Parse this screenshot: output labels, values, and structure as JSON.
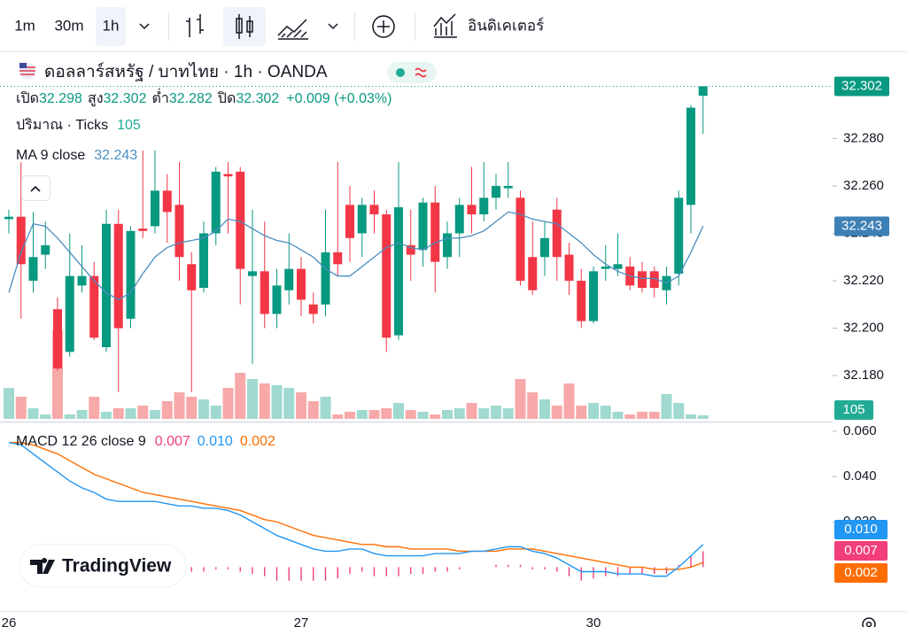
{
  "toolbar": {
    "intervals": [
      "1m",
      "30m",
      "1h"
    ],
    "indicators": "อินดิเคเตอร์"
  },
  "watermark": "TradingView",
  "chart_data": {
    "type": "candlestick",
    "title": "ดอลลาร์สหรัฐ / บาทไทย · 1h · OANDA",
    "ohlc_labels": [
      "เปิด",
      "สูง",
      "ต่ำ",
      "ปิด"
    ],
    "change": "+0.009 (+0.03%)",
    "categories": [
      "26",
      null,
      null,
      null,
      null,
      null,
      null,
      null,
      null,
      null,
      null,
      null,
      null,
      null,
      null,
      null,
      null,
      null,
      null,
      null,
      null,
      null,
      null,
      null,
      "27",
      null,
      null,
      null,
      null,
      null,
      null,
      null,
      null,
      null,
      null,
      null,
      null,
      null,
      null,
      null,
      null,
      null,
      null,
      null,
      null,
      null,
      null,
      null,
      "30",
      null,
      null,
      null,
      null,
      null,
      null,
      null,
      null,
      null
    ],
    "open": [
      32.246,
      32.247,
      32.22,
      32.231,
      32.208,
      32.19,
      32.218,
      32.222,
      32.192,
      32.244,
      32.204,
      32.242,
      32.243,
      32.258,
      32.252,
      32.227,
      32.217,
      32.24,
      32.265,
      32.266,
      32.222,
      32.224,
      32.206,
      32.216,
      32.225,
      32.21,
      32.21,
      32.232,
      32.252,
      32.24,
      32.252,
      32.248,
      32.197,
      32.235,
      32.233,
      32.253,
      32.23,
      32.24,
      32.252,
      32.248,
      32.255,
      32.259,
      32.255,
      32.23,
      32.23,
      32.25,
      32.231,
      32.22,
      32.203,
      32.225,
      32.225,
      32.226,
      32.224,
      32.224,
      32.216,
      32.223,
      32.252,
      32.298
    ],
    "high": [
      32.25,
      32.27,
      32.249,
      32.245,
      32.213,
      32.24,
      32.235,
      32.228,
      32.25,
      32.25,
      32.243,
      32.275,
      32.275,
      32.265,
      32.27,
      32.232,
      32.245,
      32.268,
      32.27,
      32.268,
      32.25,
      32.245,
      32.225,
      32.24,
      32.23,
      32.215,
      32.25,
      32.27,
      32.26,
      32.255,
      32.258,
      32.25,
      32.27,
      32.25,
      32.255,
      32.26,
      32.245,
      32.255,
      32.268,
      32.27,
      32.265,
      32.27,
      32.258,
      32.245,
      32.245,
      32.255,
      32.236,
      32.225,
      32.226,
      32.235,
      32.24,
      32.23,
      32.228,
      32.226,
      32.226,
      32.258,
      32.294,
      32.302
    ],
    "low": [
      32.24,
      32.204,
      32.215,
      32.225,
      32.182,
      32.188,
      32.215,
      32.195,
      32.19,
      32.173,
      32.2,
      32.238,
      32.24,
      32.236,
      32.22,
      32.173,
      32.215,
      32.235,
      32.24,
      32.21,
      32.185,
      32.2,
      32.2,
      32.21,
      32.205,
      32.202,
      32.205,
      32.222,
      32.228,
      32.23,
      32.24,
      32.19,
      32.195,
      32.22,
      32.226,
      32.215,
      32.225,
      32.23,
      32.24,
      32.245,
      32.25,
      32.255,
      32.218,
      32.214,
      32.222,
      32.22,
      32.214,
      32.2,
      32.202,
      32.22,
      32.222,
      32.216,
      32.215,
      32.213,
      32.21,
      32.218,
      32.24,
      32.282
    ],
    "close": [
      32.247,
      32.227,
      32.23,
      32.235,
      32.183,
      32.222,
      32.222,
      32.196,
      32.244,
      32.2,
      32.241,
      32.241,
      32.258,
      32.249,
      32.23,
      32.216,
      32.24,
      32.266,
      32.264,
      32.225,
      32.224,
      32.206,
      32.218,
      32.225,
      32.212,
      32.206,
      32.232,
      32.227,
      32.238,
      32.252,
      32.248,
      32.196,
      32.251,
      32.231,
      32.253,
      32.228,
      32.24,
      32.252,
      32.248,
      32.255,
      32.26,
      32.26,
      32.22,
      32.216,
      32.238,
      32.23,
      32.22,
      32.203,
      32.224,
      32.226,
      32.227,
      32.218,
      32.217,
      32.217,
      32.222,
      32.255,
      32.293,
      32.302
    ],
    "up_color": "#089981",
    "down_color": "#f23645",
    "ylim": [
      32.161,
      32.316
    ],
    "yticks": [
      {
        "value": 32.18,
        "label": "32.180"
      },
      {
        "value": 32.2,
        "label": "32.200"
      },
      {
        "value": 32.22,
        "label": "32.220"
      },
      {
        "value": 32.24,
        "label": "32.240"
      },
      {
        "value": 32.26,
        "label": "32.260"
      },
      {
        "value": 32.28,
        "label": "32.280"
      }
    ],
    "volume": {
      "label": "ปริมาณ · Ticks",
      "up_color": "#a0d9cf",
      "down_color": "#f7a9a9",
      "values": [
        910,
        650,
        312,
        130,
        2600,
        130,
        260,
        650,
        208,
        312,
        312,
        390,
        260,
        520,
        780,
        650,
        572,
        390,
        910,
        1352,
        1170,
        1040,
        988,
        910,
        780,
        520,
        650,
        130,
        208,
        260,
        260,
        312,
        468,
        260,
        208,
        130,
        260,
        312,
        468,
        312,
        390,
        312,
        1170,
        780,
        572,
        390,
        1040,
        390,
        468,
        390,
        208,
        130,
        208,
        208,
        728,
        468,
        130,
        105
      ]
    },
    "ma": {
      "label": "MA 9 close",
      "color": "#4a8dc0",
      "values": [
        32.215,
        32.232,
        32.244,
        32.243,
        32.238,
        32.232,
        32.226,
        32.22,
        32.215,
        32.212,
        32.215,
        32.223,
        32.23,
        32.234,
        32.236,
        32.237,
        32.238,
        32.241,
        32.246,
        32.245,
        32.242,
        32.239,
        32.237,
        32.236,
        32.233,
        32.23,
        32.225,
        32.222,
        32.222,
        32.226,
        32.23,
        32.234,
        32.236,
        32.234,
        32.233,
        32.236,
        32.238,
        32.238,
        32.239,
        32.241,
        32.245,
        32.249,
        32.248,
        32.246,
        32.245,
        32.244,
        32.24,
        32.236,
        32.231,
        32.227,
        32.224,
        32.222,
        32.221,
        32.221,
        32.219,
        32.222,
        32.232,
        32.243
      ]
    },
    "macd": {
      "label": "MACD 12 26 close 9",
      "ylim": [
        -0.0194,
        0.0635
      ],
      "yticks": [
        {
          "value": 0.02,
          "label": "0.020"
        },
        {
          "value": 0.04,
          "label": "0.040"
        },
        {
          "value": 0.06,
          "label": "0.060"
        }
      ],
      "histogram": {
        "color": "#f23e7c",
        "values": [
          0,
          -0.001,
          -0.004,
          -0.006,
          -0.008,
          -0.009,
          -0.009,
          -0.008,
          -0.009,
          -0.008,
          -0.006,
          -0.004,
          -0.003,
          -0.003,
          -0.003,
          -0.002,
          -0.002,
          -0.001,
          -0.001,
          -0.002,
          -0.003,
          -0.004,
          -0.006,
          -0.006,
          -0.006,
          -0.006,
          -0.006,
          -0.005,
          -0.003,
          -0.002,
          -0.004,
          -0.004,
          -0.004,
          -0.003,
          -0.003,
          -0.002,
          -0.002,
          -0.001,
          0,
          0,
          0.001,
          0.001,
          0.001,
          -0.001,
          -0.001,
          -0.002,
          -0.004,
          -0.006,
          -0.005,
          -0.004,
          -0.004,
          -0.003,
          -0.003,
          -0.003,
          -0.003,
          0.001,
          0.005,
          0.007
        ]
      },
      "macd_line": {
        "color": "#2196f3",
        "values": [
          0.055,
          0.054,
          0.05,
          0.046,
          0.042,
          0.038,
          0.035,
          0.033,
          0.03,
          0.029,
          0.029,
          0.029,
          0.029,
          0.028,
          0.027,
          0.027,
          0.026,
          0.026,
          0.025,
          0.023,
          0.02,
          0.017,
          0.014,
          0.012,
          0.01,
          0.008,
          0.007,
          0.007,
          0.008,
          0.008,
          0.006,
          0.005,
          0.005,
          0.005,
          0.005,
          0.006,
          0.006,
          0.006,
          0.007,
          0.007,
          0.008,
          0.009,
          0.009,
          0.007,
          0.006,
          0.004,
          0.001,
          -0.002,
          -0.002,
          -0.002,
          -0.003,
          -0.003,
          -0.003,
          -0.004,
          -0.004,
          0.0,
          0.005,
          0.01
        ],
        "value_labels": [
          null,
          null,
          null,
          null,
          null,
          null,
          null,
          null,
          null,
          null,
          null,
          null,
          null,
          null,
          null,
          null,
          null,
          null,
          null,
          null,
          null,
          null,
          null,
          null,
          null,
          null,
          null,
          null,
          null,
          null,
          null,
          null,
          null,
          null,
          null,
          null,
          null,
          null,
          null,
          null,
          null,
          null,
          null,
          null,
          null,
          null,
          null,
          null,
          null,
          null,
          null,
          null,
          null,
          null,
          null,
          null,
          null,
          "0.010"
        ]
      },
      "signal_line": {
        "color": "#ff6d00",
        "values": [
          0.055,
          0.055,
          0.054,
          0.052,
          0.05,
          0.047,
          0.044,
          0.041,
          0.039,
          0.037,
          0.035,
          0.033,
          0.032,
          0.031,
          0.03,
          0.029,
          0.028,
          0.027,
          0.026,
          0.025,
          0.023,
          0.021,
          0.02,
          0.018,
          0.016,
          0.014,
          0.013,
          0.012,
          0.011,
          0.01,
          0.01,
          0.009,
          0.009,
          0.008,
          0.008,
          0.008,
          0.008,
          0.007,
          0.007,
          0.007,
          0.007,
          0.008,
          0.008,
          0.008,
          0.007,
          0.006,
          0.005,
          0.004,
          0.003,
          0.002,
          0.001,
          0.0,
          0.0,
          -0.001,
          -0.001,
          -0.001,
          0.0,
          0.002
        ]
      }
    }
  }
}
